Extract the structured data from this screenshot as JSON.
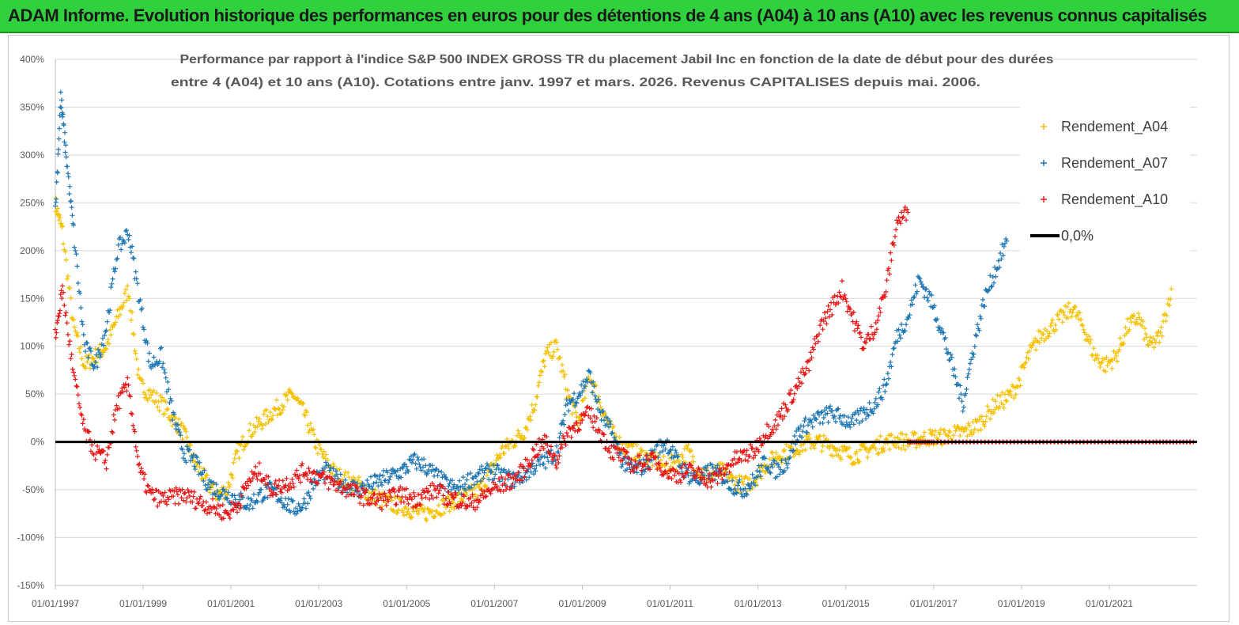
{
  "banner": {
    "title": "ADAM Informe. Evolution historique des performances en euros pour des détentions de 4 ans (A04) à 10 ans (A10) avec les revenus connus capitalisés",
    "background_color": "#2fd13d"
  },
  "chart_data": {
    "type": "scatter",
    "title_line1": "Performance par rapport à l'indice S&P 500 INDEX GROSS TR  du placement Jabil Inc en fonction de la date de début pour des durées",
    "title_line2": "entre 4 (A04) et 10 ans (A10). Cotations entre janv. 1997 et mars. 2026. Revenus CAPITALISES depuis mai. 2006.",
    "xlabel": "",
    "ylabel": "",
    "xlim": [
      "1997-01-01",
      "2023-01-01"
    ],
    "ylim": [
      -150,
      400
    ],
    "y_ticks": [
      "400%",
      "350%",
      "300%",
      "250%",
      "200%",
      "150%",
      "100%",
      "50%",
      "0%",
      "-50%",
      "-100%",
      "-150%"
    ],
    "x_ticks": [
      "01/01/1997",
      "01/01/1999",
      "01/01/2001",
      "01/01/2003",
      "01/01/2005",
      "01/01/2007",
      "01/01/2009",
      "01/01/2011",
      "01/01/2013",
      "01/01/2015",
      "01/01/2017",
      "01/01/2019",
      "01/01/2021"
    ],
    "grid": "horizontal",
    "legend_position": "top-right",
    "legend": [
      {
        "label": "Rendement_A04",
        "color": "#f5c000",
        "marker": "+"
      },
      {
        "label": "Rendement_A07",
        "color": "#1f77b4",
        "marker": "+"
      },
      {
        "label": "Rendement_A10",
        "color": "#e81818",
        "marker": "+"
      },
      {
        "label": "0,0%",
        "color": "#000000",
        "marker": "line"
      }
    ],
    "series": [
      {
        "name": "Rendement_A04",
        "color": "#f5c000",
        "x": [
          "1997-01-01",
          "1997-03-01",
          "1997-06-01",
          "1997-09-01",
          "1997-12-01",
          "1998-03-01",
          "1998-06-01",
          "1998-09-01",
          "1998-12-01",
          "1999-03-01",
          "1999-06-01",
          "1999-09-01",
          "1999-12-01",
          "2000-03-01",
          "2000-06-01",
          "2000-09-01",
          "2000-12-01",
          "2001-03-01",
          "2001-06-01",
          "2001-09-01",
          "2001-12-01",
          "2002-03-01",
          "2002-06-01",
          "2002-09-01",
          "2002-12-01",
          "2003-03-01",
          "2003-06-01",
          "2003-09-01",
          "2003-12-01",
          "2004-03-01",
          "2004-06-01",
          "2004-09-01",
          "2004-12-01",
          "2005-03-01",
          "2005-06-01",
          "2005-09-01",
          "2005-12-01",
          "2006-03-01",
          "2006-06-01",
          "2006-09-01",
          "2006-12-01",
          "2007-03-01",
          "2007-06-01",
          "2007-09-01",
          "2007-12-01",
          "2008-03-01",
          "2008-06-01",
          "2008-09-01",
          "2008-12-01",
          "2009-03-01",
          "2009-06-01",
          "2009-09-01",
          "2009-12-01",
          "2010-03-01",
          "2010-06-01",
          "2010-09-01",
          "2010-12-01",
          "2011-03-01",
          "2011-06-01",
          "2011-09-01",
          "2011-12-01",
          "2012-03-01",
          "2012-06-01",
          "2012-09-01",
          "2012-12-01",
          "2013-03-01",
          "2013-06-01",
          "2013-09-01",
          "2013-12-01",
          "2014-03-01",
          "2014-06-01",
          "2014-09-01",
          "2014-12-01",
          "2015-03-01",
          "2015-06-01",
          "2015-09-01",
          "2015-12-01",
          "2016-03-01",
          "2016-06-01",
          "2016-09-01",
          "2016-12-01",
          "2017-03-01",
          "2017-06-01",
          "2017-09-01",
          "2017-12-01",
          "2018-03-01",
          "2018-06-01",
          "2018-09-01",
          "2018-12-01",
          "2019-03-01",
          "2019-06-01",
          "2019-09-01",
          "2019-12-01",
          "2020-03-01",
          "2020-06-01",
          "2020-09-01",
          "2020-12-01",
          "2021-03-01",
          "2021-06-01",
          "2021-09-01",
          "2021-12-01",
          "2022-03-01",
          "2022-06-01"
        ],
        "values": [
          250,
          220,
          120,
          80,
          90,
          100,
          130,
          160,
          60,
          50,
          40,
          25,
          10,
          -20,
          -40,
          -55,
          -50,
          -10,
          10,
          20,
          30,
          40,
          50,
          30,
          0,
          -20,
          -35,
          -40,
          -45,
          -55,
          -60,
          -65,
          -68,
          -72,
          -75,
          -70,
          -65,
          -60,
          -55,
          -50,
          -30,
          -10,
          0,
          10,
          40,
          90,
          100,
          50,
          20,
          70,
          40,
          10,
          -5,
          -10,
          -15,
          -20,
          -25,
          -20,
          -10,
          -30,
          -35,
          -30,
          -40,
          -45,
          -40,
          -25,
          -15,
          -10,
          -5,
          0,
          0,
          -5,
          -10,
          -15,
          -10,
          -5,
          0,
          2,
          0,
          3,
          5,
          5,
          8,
          10,
          15,
          25,
          40,
          45,
          60,
          90,
          110,
          120,
          130,
          140,
          120,
          90,
          80,
          90,
          120,
          130,
          100,
          110,
          160
        ]
      },
      {
        "name": "Rendement_A07",
        "color": "#1f77b4",
        "x": [
          "1997-01-01",
          "1997-02-15",
          "1997-04-01",
          "1997-06-01",
          "1997-09-01",
          "1997-12-01",
          "1998-03-01",
          "1998-06-01",
          "1998-09-01",
          "1998-12-01",
          "1999-03-01",
          "1999-06-01",
          "1999-09-01",
          "1999-12-01",
          "2000-03-01",
          "2000-06-01",
          "2000-09-01",
          "2000-12-01",
          "2001-03-01",
          "2001-06-01",
          "2001-09-01",
          "2001-12-01",
          "2002-03-01",
          "2002-06-01",
          "2002-09-01",
          "2002-12-01",
          "2003-03-01",
          "2003-06-01",
          "2003-09-01",
          "2003-12-01",
          "2004-03-01",
          "2004-06-01",
          "2004-09-01",
          "2004-12-01",
          "2005-03-01",
          "2005-06-01",
          "2005-09-01",
          "2005-12-01",
          "2006-03-01",
          "2006-06-01",
          "2006-09-01",
          "2006-12-01",
          "2007-03-01",
          "2007-06-01",
          "2007-09-01",
          "2007-12-01",
          "2008-03-01",
          "2008-06-01",
          "2008-09-01",
          "2008-12-01",
          "2009-03-01",
          "2009-06-01",
          "2009-09-01",
          "2009-12-01",
          "2010-03-01",
          "2010-06-01",
          "2010-09-01",
          "2010-12-01",
          "2011-03-01",
          "2011-06-01",
          "2011-09-01",
          "2011-12-01",
          "2012-03-01",
          "2012-06-01",
          "2012-09-01",
          "2012-12-01",
          "2013-03-01",
          "2013-06-01",
          "2013-09-01",
          "2013-12-01",
          "2014-03-01",
          "2014-06-01",
          "2014-09-01",
          "2014-12-01",
          "2015-03-01",
          "2015-06-01",
          "2015-09-01",
          "2015-12-01",
          "2016-03-01",
          "2016-06-01",
          "2016-09-01",
          "2016-12-01",
          "2017-03-01",
          "2017-06-01",
          "2017-09-01",
          "2017-12-01",
          "2018-03-01",
          "2018-06-01",
          "2018-09-01"
        ],
        "values": [
          240,
          360,
          300,
          220,
          100,
          80,
          120,
          200,
          220,
          150,
          80,
          90,
          30,
          -10,
          -20,
          -40,
          -50,
          -55,
          -60,
          -65,
          -55,
          -50,
          -60,
          -70,
          -65,
          -40,
          -30,
          -40,
          -45,
          -50,
          -45,
          -40,
          -35,
          -30,
          -20,
          -25,
          -35,
          -45,
          -50,
          -40,
          -35,
          -30,
          -35,
          -40,
          -35,
          -25,
          -20,
          -10,
          40,
          50,
          70,
          30,
          10,
          -20,
          -30,
          -25,
          -10,
          0,
          -20,
          -35,
          -40,
          -30,
          -35,
          -45,
          -50,
          -40,
          -20,
          -30,
          -20,
          10,
          20,
          25,
          30,
          25,
          20,
          30,
          40,
          60,
          110,
          130,
          170,
          150,
          120,
          80,
          40,
          100,
          150,
          180,
          210
        ]
      },
      {
        "name": "Rendement_A10",
        "color": "#e81818",
        "x": [
          "1997-01-01",
          "1997-03-01",
          "1997-06-01",
          "1997-09-01",
          "1997-12-01",
          "1998-03-01",
          "1998-06-01",
          "1998-09-01",
          "1998-12-01",
          "1999-03-01",
          "1999-06-01",
          "1999-09-01",
          "1999-12-01",
          "2000-03-01",
          "2000-06-01",
          "2000-09-01",
          "2000-12-01",
          "2001-03-01",
          "2001-06-01",
          "2001-09-01",
          "2001-12-01",
          "2002-03-01",
          "2002-06-01",
          "2002-09-01",
          "2002-12-01",
          "2003-03-01",
          "2003-06-01",
          "2003-09-01",
          "2003-12-01",
          "2004-03-01",
          "2004-06-01",
          "2004-09-01",
          "2004-12-01",
          "2005-03-01",
          "2005-06-01",
          "2005-09-01",
          "2005-12-01",
          "2006-03-01",
          "2006-06-01",
          "2006-09-01",
          "2006-12-01",
          "2007-03-01",
          "2007-06-01",
          "2007-09-01",
          "2007-12-01",
          "2008-03-01",
          "2008-06-01",
          "2008-09-01",
          "2008-12-01",
          "2009-03-01",
          "2009-06-01",
          "2009-09-01",
          "2009-12-01",
          "2010-03-01",
          "2010-06-01",
          "2010-09-01",
          "2010-12-01",
          "2011-03-01",
          "2011-06-01",
          "2011-09-01",
          "2011-12-01",
          "2012-03-01",
          "2012-06-01",
          "2012-09-01",
          "2012-12-01",
          "2013-03-01",
          "2013-06-01",
          "2013-09-01",
          "2013-12-01",
          "2014-03-01",
          "2014-06-01",
          "2014-09-01",
          "2014-12-01",
          "2015-03-01",
          "2015-06-01",
          "2015-09-01",
          "2015-12-01",
          "2016-03-01",
          "2016-06-01"
        ],
        "values": [
          110,
          160,
          70,
          10,
          -10,
          -20,
          40,
          60,
          -30,
          -55,
          -60,
          -58,
          -55,
          -60,
          -65,
          -70,
          -75,
          -65,
          -40,
          -30,
          -50,
          -45,
          -40,
          -30,
          -35,
          -40,
          -45,
          -50,
          -55,
          -60,
          -62,
          -58,
          -55,
          -60,
          -55,
          -50,
          -58,
          -60,
          -65,
          -60,
          -50,
          -45,
          -40,
          -30,
          -10,
          0,
          -20,
          10,
          20,
          30,
          10,
          -10,
          -15,
          -25,
          -20,
          -20,
          -30,
          -35,
          -30,
          -35,
          -40,
          -35,
          -20,
          -15,
          -10,
          10,
          20,
          40,
          60,
          80,
          120,
          140,
          160,
          130,
          100,
          120,
          160,
          230,
          240
        ]
      },
      {
        "name": "Rendement_A10",
        "color": "#e81818",
        "x": [
          "2016-06-01",
          "2017-01-01",
          "2018-01-01",
          "2019-01-01",
          "2020-01-01",
          "2021-01-01",
          "2022-01-01",
          "2022-12-01"
        ],
        "values": [
          0,
          0,
          0,
          0,
          0,
          0,
          0,
          0
        ]
      },
      {
        "name": "0,0%",
        "color": "#000000",
        "x": [
          "1997-01-01",
          "2023-01-01"
        ],
        "values": [
          0,
          0
        ]
      }
    ]
  }
}
